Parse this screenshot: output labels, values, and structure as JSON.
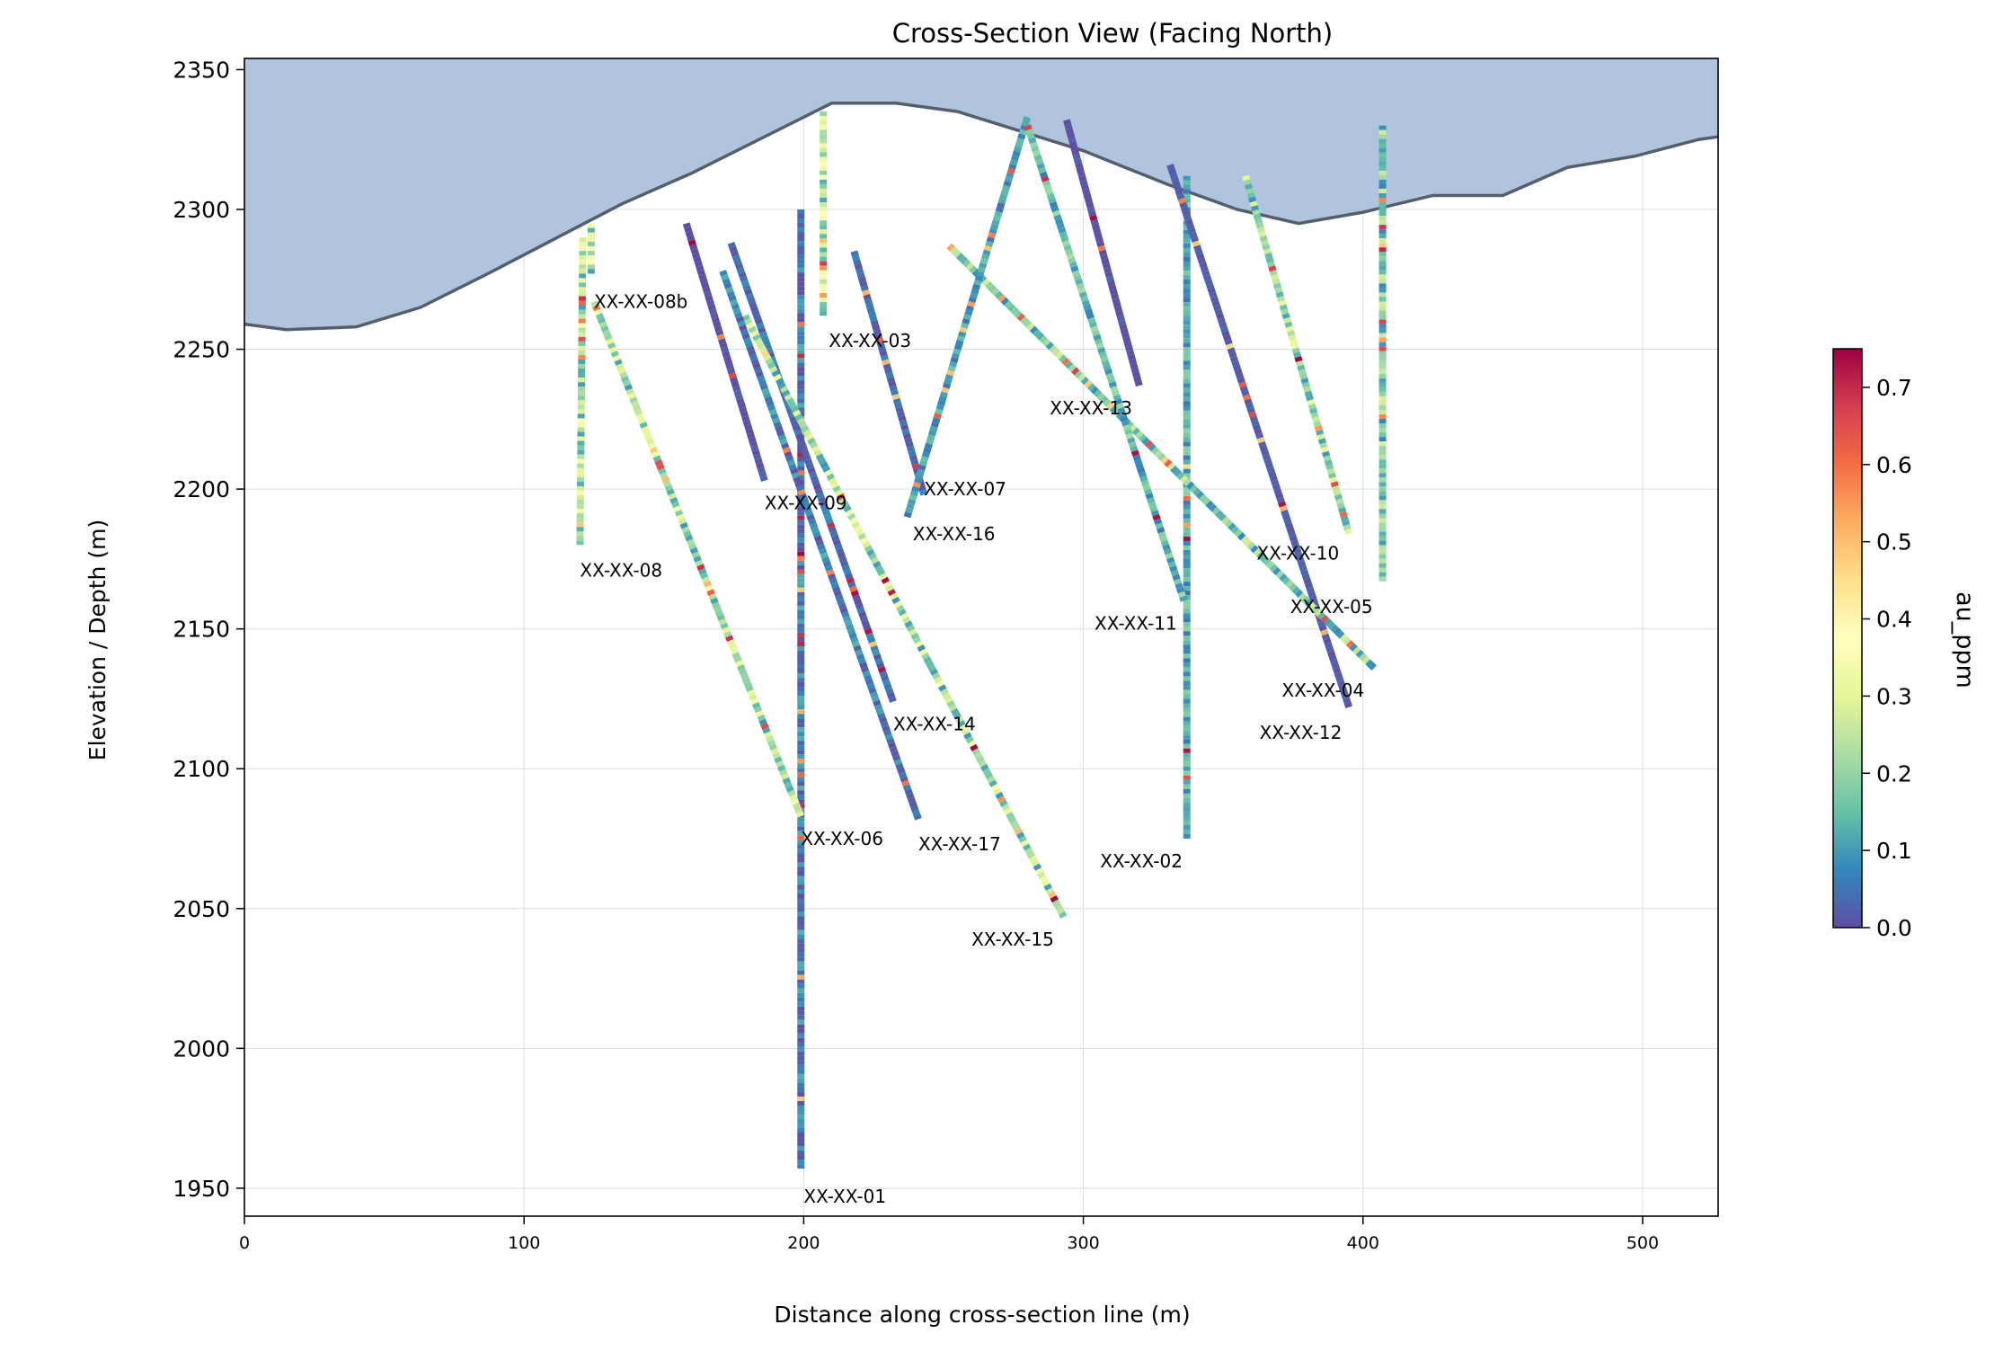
{
  "chart_data": {
    "type": "line",
    "title": "Cross-Section View (Facing North)",
    "xlabel": "Distance along cross-section line (m)",
    "ylabel": "Elevation / Depth (m)",
    "xlim": [
      0,
      527
    ],
    "ylim": [
      1940,
      2354
    ],
    "x_ticks": [
      "0",
      "100",
      "200",
      "300",
      "400",
      "500"
    ],
    "y_ticks": [
      "1950",
      "2000",
      "2050",
      "2100",
      "2150",
      "2200",
      "2250",
      "2300",
      "2350"
    ],
    "x_tick_values": [
      0,
      100,
      200,
      300,
      400,
      500
    ],
    "y_tick_values": [
      1950,
      2000,
      2050,
      2100,
      2150,
      2200,
      2250,
      2300,
      2350
    ],
    "grid": true,
    "colors": {
      "topography_fill": "#b0c4de",
      "topography_line": "#555f6b",
      "grid": "#dddddd"
    },
    "topography": {
      "x": [
        0,
        15,
        40,
        63,
        87,
        135,
        160,
        210,
        233,
        255,
        300,
        330,
        355,
        377,
        400,
        425,
        450,
        473,
        497,
        520,
        527
      ],
      "y": [
        2259,
        2257,
        2258,
        2265,
        2277,
        2302,
        2313,
        2338,
        2338,
        2335,
        2321,
        2309,
        2300,
        2295,
        2299,
        2305,
        2305,
        2315,
        2319,
        2325,
        2326
      ]
    },
    "colorbar": {
      "label": "au_ppm",
      "min": 0.0,
      "max": 0.75,
      "ticks": [
        "0.0",
        "0.1",
        "0.2",
        "0.3",
        "0.4",
        "0.5",
        "0.6",
        "0.7"
      ],
      "tick_values": [
        0.0,
        0.1,
        0.2,
        0.3,
        0.4,
        0.5,
        0.6,
        0.7
      ],
      "colormap": [
        "#5e4fa2",
        "#3288bd",
        "#66c2a5",
        "#abdda4",
        "#e6f598",
        "#ffffbf",
        "#fee08b",
        "#fdae61",
        "#f46d43",
        "#d53e4f",
        "#9e0142"
      ]
    },
    "drillholes": [
      {
        "name": "XX-XX-01",
        "start": [
          199,
          2300
        ],
        "end": [
          199,
          1957
        ],
        "bias": 0.08,
        "label_at": [
          200,
          1947
        ]
      },
      {
        "name": "XX-XX-02",
        "start": [
          337,
          2312
        ],
        "end": [
          337,
          2075
        ],
        "bias": 0.12,
        "label_at": [
          306,
          2067
        ]
      },
      {
        "name": "XX-XX-03",
        "start": [
          218,
          2285
        ],
        "end": [
          243,
          2198
        ],
        "bias": 0.05,
        "label_at": [
          209,
          2253
        ]
      },
      {
        "name": "XX-XX-04",
        "start": [
          331,
          2316
        ],
        "end": [
          395,
          2122
        ],
        "bias": 0.02,
        "label_at": [
          371,
          2128
        ]
      },
      {
        "name": "XX-XX-05",
        "start": [
          252,
          2287
        ],
        "end": [
          404,
          2136
        ],
        "bias": 0.18,
        "label_at": [
          374,
          2158
        ]
      },
      {
        "name": "XX-XX-06",
        "start": [
          125,
          2267
        ],
        "end": [
          199,
          2083
        ],
        "bias": 0.22,
        "label_at": [
          199,
          2075
        ]
      },
      {
        "name": "XX-XX-07",
        "start": [
          280,
          2333
        ],
        "end": [
          237,
          2190
        ],
        "bias": 0.1,
        "label_at": [
          243,
          2200
        ]
      },
      {
        "name": "XX-XX-08",
        "start": [
          121,
          2290
        ],
        "end": [
          120,
          2180
        ],
        "bias": 0.22,
        "label_at": [
          120,
          2171
        ]
      },
      {
        "name": "XX-XX-08b",
        "start": [
          124,
          2295
        ],
        "end": [
          124,
          2277
        ],
        "bias": 0.25,
        "label_at": [
          125,
          2267
        ]
      },
      {
        "name": "XX-XX-09",
        "start": [
          158,
          2295
        ],
        "end": [
          186,
          2203
        ],
        "bias": 0.0,
        "label_at": [
          186,
          2195
        ]
      },
      {
        "name": "XX-XX-10",
        "start": [
          358,
          2312
        ],
        "end": [
          395,
          2184
        ],
        "bias": 0.2,
        "label_at": [
          362,
          2177
        ]
      },
      {
        "name": "XX-XX-11",
        "start": [
          280,
          2330
        ],
        "end": [
          336,
          2160
        ],
        "bias": 0.14,
        "label_at": [
          304,
          2152
        ]
      },
      {
        "name": "XX-XX-12",
        "start": [
          407,
          2330
        ],
        "end": [
          407,
          2167
        ],
        "bias": 0.18,
        "label_at": [
          363,
          2113
        ]
      },
      {
        "name": "XX-XX-13",
        "start": [
          294,
          2332
        ],
        "end": [
          320,
          2237
        ],
        "bias": 0.0,
        "label_at": [
          288,
          2229
        ]
      },
      {
        "name": "XX-XX-14",
        "start": [
          174,
          2288
        ],
        "end": [
          232,
          2124
        ],
        "bias": 0.06,
        "label_at": [
          232,
          2116
        ]
      },
      {
        "name": "XX-XX-15",
        "start": [
          179,
          2262
        ],
        "end": [
          293,
          2047
        ],
        "bias": 0.22,
        "label_at": [
          260,
          2039
        ]
      },
      {
        "name": "XX-XX-16",
        "start": [
          207,
          2335
        ],
        "end": [
          207,
          2262
        ],
        "bias": 0.25,
        "label_at": [
          239,
          2184
        ]
      },
      {
        "name": "XX-XX-17",
        "start": [
          171,
          2278
        ],
        "end": [
          241,
          2082
        ],
        "bias": 0.08,
        "label_at": [
          241,
          2073
        ]
      }
    ]
  }
}
